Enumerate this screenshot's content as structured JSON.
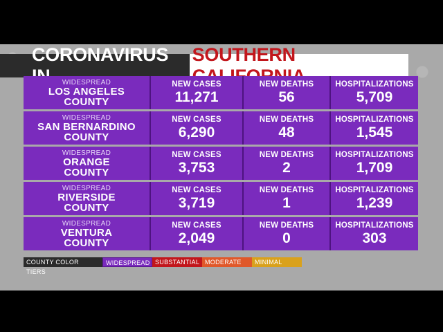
{
  "title": {
    "left": "CORONAVIRUS IN",
    "right": "SOUTHERN CALIFORNIA"
  },
  "headers": {
    "cases": "NEW CASES",
    "deaths": "NEW DEATHS",
    "hosp": "HOSPITALIZATIONS"
  },
  "counties": [
    {
      "tier": "WIDESPREAD",
      "line1": "LOS ANGELES",
      "line2": "COUNTY",
      "cases": "11,271",
      "deaths": "56",
      "hosp": "5,709"
    },
    {
      "tier": "WIDESPREAD",
      "line1": "SAN BERNARDINO",
      "line2": "COUNTY",
      "cases": "6,290",
      "deaths": "48",
      "hosp": "1,545"
    },
    {
      "tier": "WIDESPREAD",
      "line1": "ORANGE",
      "line2": "COUNTY",
      "cases": "3,753",
      "deaths": "2",
      "hosp": "1,709"
    },
    {
      "tier": "WIDESPREAD",
      "line1": "RIVERSIDE",
      "line2": "COUNTY",
      "cases": "3,719",
      "deaths": "1",
      "hosp": "1,239"
    },
    {
      "tier": "WIDESPREAD",
      "line1": "VENTURA",
      "line2": "COUNTY",
      "cases": "2,049",
      "deaths": "0",
      "hosp": "303"
    }
  ],
  "legend": {
    "label": "COUNTY COLOR TIERS",
    "widespread": "WIDESPREAD",
    "substantial": "SUBSTANTIAL",
    "moderate": "MODERATE",
    "minimal": "MINIMAL"
  },
  "colors": {
    "widespread": "#7a2bbd",
    "substantial": "#c2161c",
    "moderate": "#e0582a",
    "minimal": "#d9a11c"
  }
}
